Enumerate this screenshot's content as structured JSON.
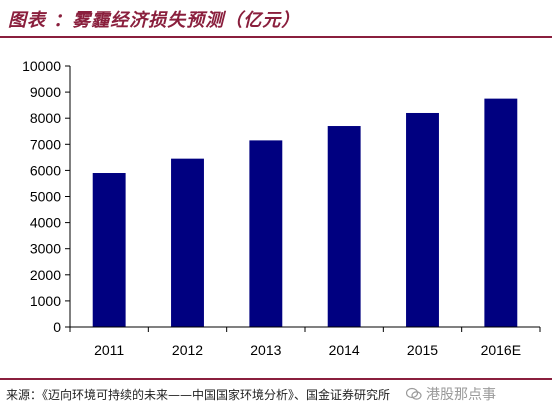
{
  "header": {
    "title": "图表 ：雾霾经济损失预测（亿元）"
  },
  "chart_data": {
    "type": "bar",
    "categories": [
      "2011",
      "2012",
      "2013",
      "2014",
      "2015",
      "2016E"
    ],
    "values": [
      5900,
      6450,
      7150,
      7700,
      8200,
      8750
    ],
    "ylim": [
      0,
      10000
    ],
    "yticks": [
      0,
      1000,
      2000,
      3000,
      4000,
      5000,
      6000,
      7000,
      8000,
      9000,
      10000
    ],
    "title": "",
    "xlabel": "",
    "ylabel": "",
    "grid": false,
    "bar_color": "#000080"
  },
  "footer": {
    "source": "来源：《迈向环境可持续的未来——中国国家环境分析》、国金证券研究所",
    "watermark": "港股那点事",
    "watermark_icon": "wechat-icon"
  },
  "colors": {
    "accent": "#8a1f3d"
  }
}
